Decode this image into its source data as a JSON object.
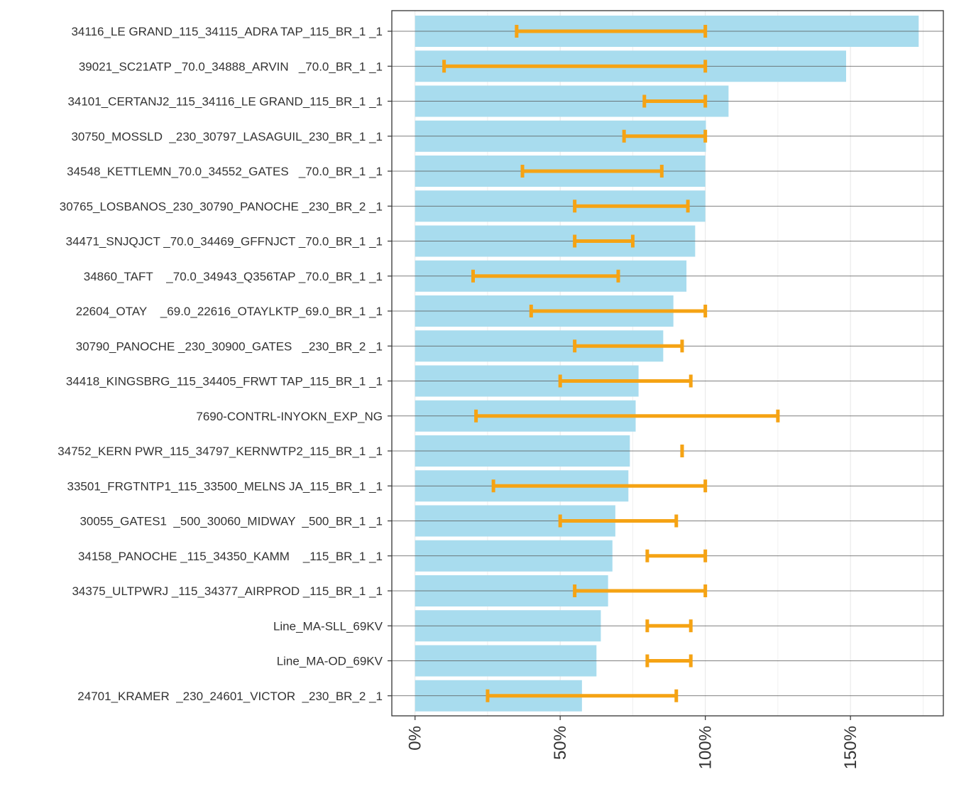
{
  "chart_data": {
    "type": "bar",
    "orientation": "horizontal",
    "title": "",
    "xlabel": "",
    "ylabel": "",
    "xlim": [
      -8,
      182
    ],
    "x_ticks": [
      0,
      50,
      100,
      150
    ],
    "x_tick_labels": [
      "0%",
      "50%",
      "100%",
      "150%"
    ],
    "grid": true,
    "legend": "none",
    "colors": {
      "bar": "#a8dcee",
      "errorbar": "#f5a314",
      "axis": "#333333",
      "grid": "#e6e6e6",
      "row_line": "#555555"
    },
    "categories": [
      "34116_LE GRAND_115_34115_ADRA TAP_115_BR_1 _1",
      "39021_SC21ATP _70.0_34888_ARVIN   _70.0_BR_1 _1",
      "34101_CERTANJ2_115_34116_LE GRAND_115_BR_1 _1",
      "30750_MOSSLD  _230_30797_LASAGUIL_230_BR_1 _1",
      "34548_KETTLEMN_70.0_34552_GATES   _70.0_BR_1 _1",
      "30765_LOSBANOS_230_30790_PANOCHE _230_BR_2 _1",
      "34471_SNJQJCT _70.0_34469_GFFNJCT _70.0_BR_1 _1",
      "34860_TAFT    _70.0_34943_Q356TAP _70.0_BR_1 _1",
      "22604_OTAY    _69.0_22616_OTAYLKTP_69.0_BR_1 _1",
      "30790_PANOCHE _230_30900_GATES   _230_BR_2 _1",
      "34418_KINGSBRG_115_34405_FRWT TAP_115_BR_1 _1",
      "7690-CONTRL-INYOKN_EXP_NG",
      "34752_KERN PWR_115_34797_KERNWTP2_115_BR_1 _1",
      "33501_FRGTNTP1_115_33500_MELNS JA_115_BR_1 _1",
      "30055_GATES1  _500_30060_MIDWAY  _500_BR_1 _1",
      "34158_PANOCHE _115_34350_KAMM    _115_BR_1 _1",
      "34375_ULTPWRJ _115_34377_AIRPROD _115_BR_1 _1",
      "Line_MA-SLL_69KV",
      "Line_MA-OD_69KV",
      "24701_KRAMER  _230_24601_VICTOR  _230_BR_2 _1"
    ],
    "values": [
      173.5,
      148.5,
      108,
      100.2,
      100,
      100,
      96.5,
      93.5,
      89,
      85.5,
      77,
      76,
      74,
      73.5,
      69,
      68,
      66.5,
      64,
      62.5,
      57.5
    ],
    "err_low": [
      35,
      10,
      79,
      72,
      37,
      55,
      55,
      20,
      40,
      55,
      50,
      21,
      92,
      27,
      50,
      80,
      55,
      80,
      80,
      25
    ],
    "err_high": [
      100,
      100,
      100,
      100,
      85,
      94,
      75,
      70,
      100,
      92,
      95,
      125,
      92,
      100,
      90,
      100,
      100,
      95,
      95,
      90
    ]
  }
}
